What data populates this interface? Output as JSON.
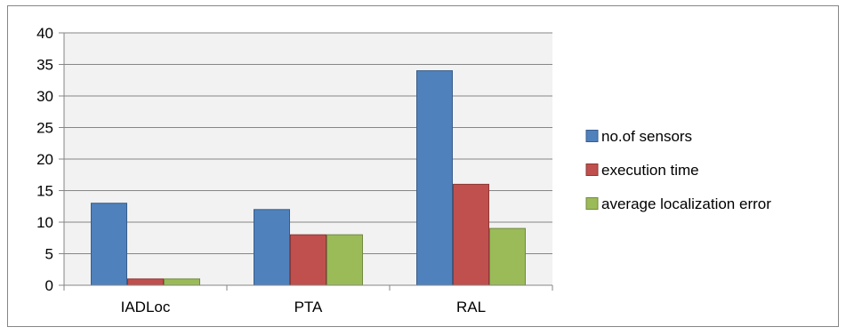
{
  "chart_data": {
    "type": "bar",
    "categories": [
      "IADLoc",
      "PTA",
      "RAL"
    ],
    "series": [
      {
        "name": "no.of sensors",
        "values": [
          13,
          12,
          34
        ],
        "color": "#4F81BD",
        "border": "#385D8A"
      },
      {
        "name": "execution time",
        "values": [
          1,
          8,
          16
        ],
        "color": "#C0504D",
        "border": "#8C3836"
      },
      {
        "name": "average localization error",
        "values": [
          1,
          8,
          9
        ],
        "color": "#9BBB59",
        "border": "#71893F"
      }
    ],
    "ylim": [
      0,
      40
    ],
    "yticks": [
      "0",
      "5",
      "10",
      "15",
      "20",
      "25",
      "30",
      "35",
      "40"
    ],
    "grid": true,
    "legend_position": "right",
    "plot_background": "#F2F2F2"
  }
}
